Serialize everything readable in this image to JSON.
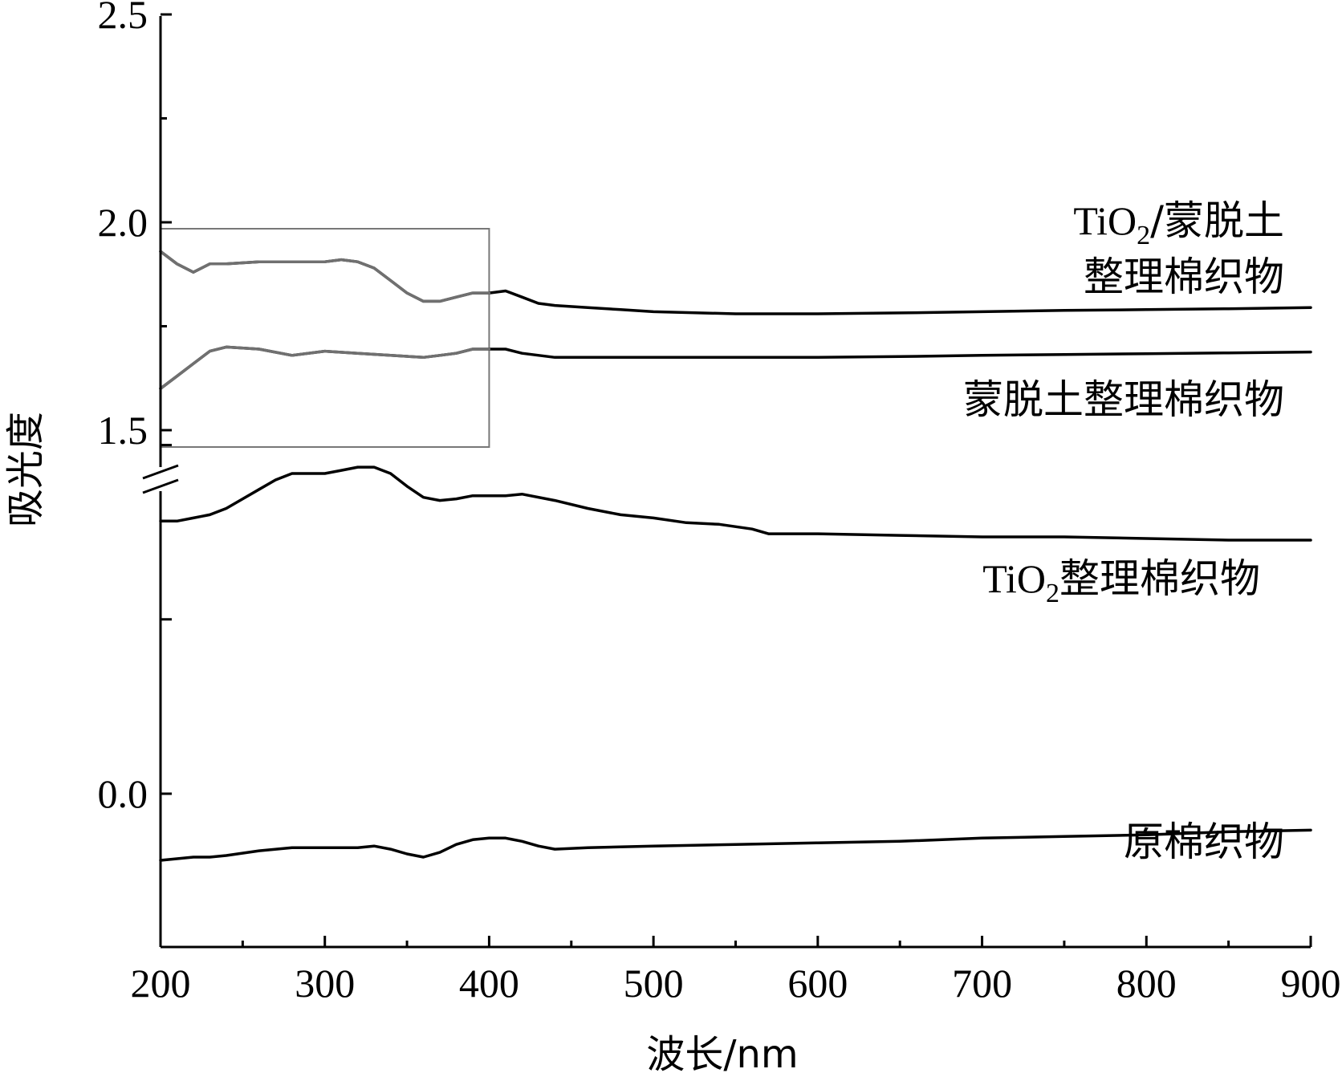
{
  "chart_data": {
    "type": "line",
    "xlabel": "波长/nm",
    "ylabel": "吸光度",
    "xlim": [
      200,
      900
    ],
    "x_ticks": [
      200,
      300,
      400,
      500,
      600,
      700,
      800,
      900
    ],
    "y_tick_labels": [
      "0.0",
      "1.5",
      "2.0",
      "2.5"
    ],
    "axis_break": true,
    "highlight_box": {
      "x_range": [
        200,
        400
      ]
    },
    "series": [
      {
        "name": "TiO2/蒙脱土整理棉织物",
        "label_lines": [
          [
            {
              "text": "TiO"
            },
            {
              "text": "2",
              "sub": true
            },
            {
              "text": "/蒙脱土"
            }
          ],
          [
            {
              "text": "整理棉织物"
            }
          ]
        ],
        "x": [
          200,
          210,
          220,
          230,
          240,
          260,
          280,
          300,
          310,
          320,
          330,
          340,
          350,
          360,
          370,
          380,
          390,
          400,
          410,
          420,
          430,
          440,
          460,
          480,
          500,
          550,
          600,
          650,
          700,
          750,
          800,
          850,
          900
        ],
        "y": [
          1.93,
          1.9,
          1.88,
          1.9,
          1.9,
          1.905,
          1.905,
          1.905,
          1.91,
          1.905,
          1.89,
          1.86,
          1.83,
          1.81,
          1.81,
          1.82,
          1.83,
          1.83,
          1.835,
          1.82,
          1.805,
          1.8,
          1.795,
          1.79,
          1.785,
          1.78,
          1.78,
          1.782,
          1.785,
          1.788,
          1.79,
          1.792,
          1.795
        ]
      },
      {
        "name": "蒙脱土整理棉织物",
        "label_lines": [
          [
            {
              "text": "蒙脱土整理棉织物"
            }
          ]
        ],
        "x": [
          200,
          210,
          220,
          230,
          240,
          260,
          280,
          300,
          320,
          340,
          360,
          370,
          380,
          390,
          400,
          410,
          420,
          440,
          460,
          500,
          550,
          600,
          650,
          700,
          750,
          800,
          850,
          900
        ],
        "y": [
          1.6,
          1.63,
          1.66,
          1.69,
          1.7,
          1.695,
          1.68,
          1.69,
          1.685,
          1.68,
          1.675,
          1.68,
          1.685,
          1.695,
          1.695,
          1.695,
          1.685,
          1.675,
          1.675,
          1.675,
          1.675,
          1.675,
          1.677,
          1.68,
          1.682,
          1.684,
          1.686,
          1.688
        ]
      },
      {
        "name": "TiO2整理棉织物",
        "label_lines": [
          [
            {
              "text": "TiO"
            },
            {
              "text": "2",
              "sub": true
            },
            {
              "text": "整理棉织物"
            }
          ]
        ],
        "x": [
          200,
          210,
          220,
          230,
          240,
          250,
          260,
          270,
          280,
          290,
          300,
          310,
          320,
          330,
          340,
          350,
          360,
          370,
          380,
          390,
          400,
          410,
          420,
          440,
          460,
          480,
          500,
          520,
          540,
          560,
          570,
          600,
          650,
          700,
          750,
          800,
          850,
          900
        ],
        "y": [
          0.86,
          0.86,
          0.87,
          0.88,
          0.9,
          0.93,
          0.96,
          0.99,
          1.01,
          1.01,
          1.01,
          1.02,
          1.03,
          1.03,
          1.01,
          0.97,
          0.935,
          0.925,
          0.93,
          0.94,
          0.94,
          0.94,
          0.945,
          0.925,
          0.9,
          0.88,
          0.87,
          0.855,
          0.85,
          0.835,
          0.82,
          0.82,
          0.815,
          0.81,
          0.81,
          0.805,
          0.8,
          0.8
        ]
      },
      {
        "name": "原棉织物",
        "label_lines": [
          [
            {
              "text": "原棉织物"
            }
          ]
        ],
        "x": [
          200,
          210,
          220,
          230,
          240,
          260,
          280,
          300,
          320,
          330,
          340,
          350,
          360,
          370,
          380,
          390,
          400,
          410,
          420,
          430,
          440,
          460,
          500,
          550,
          600,
          650,
          700,
          750,
          800,
          850,
          900
        ],
        "y": [
          -0.21,
          -0.205,
          -0.2,
          -0.2,
          -0.195,
          -0.18,
          -0.17,
          -0.17,
          -0.17,
          -0.165,
          -0.175,
          -0.19,
          -0.2,
          -0.185,
          -0.16,
          -0.145,
          -0.14,
          -0.14,
          -0.15,
          -0.165,
          -0.175,
          -0.17,
          -0.165,
          -0.16,
          -0.155,
          -0.15,
          -0.14,
          -0.135,
          -0.13,
          -0.12,
          -0.115
        ]
      }
    ]
  },
  "colors": {
    "line": "#000000",
    "zoomed_line": "#707070"
  }
}
